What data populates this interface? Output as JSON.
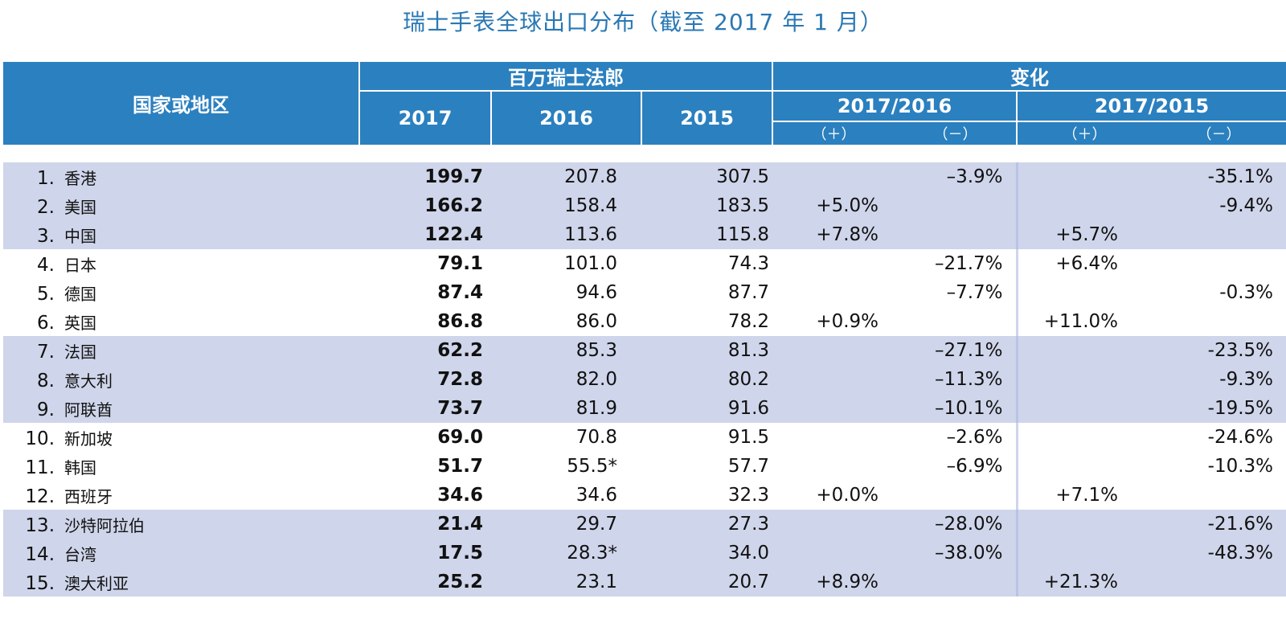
{
  "title": "瑞士手表全球出口分布（截至 2017 年 1 月）",
  "header": {
    "country": "国家或地区",
    "unit_group": "百万瑞士法郎",
    "change_group": "变化",
    "years": [
      "2017",
      "2016",
      "2015"
    ],
    "change_periods": [
      "2017/2016",
      "2017/2015"
    ],
    "plus": "（＋）",
    "minus": "（－）"
  },
  "rows": [
    {
      "rank": "1.",
      "name": "香港",
      "v2017": "199.7",
      "v2016": "207.8",
      "v2015": "307.5",
      "p1": "",
      "n1": "–3.9%",
      "p2": "",
      "n2": "-35.1%",
      "shade": true
    },
    {
      "rank": "2.",
      "name": "美国",
      "v2017": "166.2",
      "v2016": "158.4",
      "v2015": "183.5",
      "p1": "+5.0%",
      "n1": "",
      "p2": "",
      "n2": "-9.4%",
      "shade": true
    },
    {
      "rank": "3.",
      "name": "中国",
      "v2017": "122.4",
      "v2016": "113.6",
      "v2015": "115.8",
      "p1": "+7.8%",
      "n1": "",
      "p2": "+5.7%",
      "n2": "",
      "shade": true
    },
    {
      "rank": "4.",
      "name": "日本",
      "v2017": "79.1",
      "v2016": "101.0",
      "v2015": "74.3",
      "p1": "",
      "n1": "–21.7%",
      "p2": "+6.4%",
      "n2": "",
      "shade": false
    },
    {
      "rank": "5.",
      "name": "德国",
      "v2017": "87.4",
      "v2016": "94.6",
      "v2015": "87.7",
      "p1": "",
      "n1": "–7.7%",
      "p2": "",
      "n2": "-0.3%",
      "shade": false
    },
    {
      "rank": "6.",
      "name": "英国",
      "v2017": "86.8",
      "v2016": "86.0",
      "v2015": "78.2",
      "p1": "+0.9%",
      "n1": "",
      "p2": "+11.0%",
      "n2": "",
      "shade": false
    },
    {
      "rank": "7.",
      "name": "法国",
      "v2017": "62.2",
      "v2016": "85.3",
      "v2015": "81.3",
      "p1": "",
      "n1": "–27.1%",
      "p2": "",
      "n2": "-23.5%",
      "shade": true
    },
    {
      "rank": "8.",
      "name": "意大利",
      "v2017": "72.8",
      "v2016": "82.0",
      "v2015": "80.2",
      "p1": "",
      "n1": "–11.3%",
      "p2": "",
      "n2": "-9.3%",
      "shade": true
    },
    {
      "rank": "9.",
      "name": "阿联酋",
      "v2017": "73.7",
      "v2016": "81.9",
      "v2015": "91.6",
      "p1": "",
      "n1": "–10.1%",
      "p2": "",
      "n2": "-19.5%",
      "shade": true
    },
    {
      "rank": "10.",
      "name": "新加坡",
      "v2017": "69.0",
      "v2016": "70.8",
      "v2015": "91.5",
      "p1": "",
      "n1": "–2.6%",
      "p2": "",
      "n2": "-24.6%",
      "shade": false
    },
    {
      "rank": "11.",
      "name": "韩国",
      "v2017": "51.7",
      "v2016": "55.5*",
      "v2015": "57.7",
      "p1": "",
      "n1": "–6.9%",
      "p2": "",
      "n2": "-10.3%",
      "shade": false
    },
    {
      "rank": "12.",
      "name": "西班牙",
      "v2017": "34.6",
      "v2016": "34.6",
      "v2015": "32.3",
      "p1": "+0.0%",
      "n1": "",
      "p2": "+7.1%",
      "n2": "",
      "shade": false
    },
    {
      "rank": "13.",
      "name": "沙特阿拉伯",
      "v2017": "21.4",
      "v2016": "29.7",
      "v2015": "27.3",
      "p1": "",
      "n1": "–28.0%",
      "p2": "",
      "n2": "-21.6%",
      "shade": true
    },
    {
      "rank": "14.",
      "name": "台湾",
      "v2017": "17.5",
      "v2016": "28.3*",
      "v2015": "34.0",
      "p1": "",
      "n1": "–38.0%",
      "p2": "",
      "n2": "-48.3%",
      "shade": true
    },
    {
      "rank": "15.",
      "name": "澳大利亚",
      "v2017": "25.2",
      "v2016": "23.1",
      "v2015": "20.7",
      "p1": "+8.9%",
      "n1": "",
      "p2": "+21.3%",
      "n2": "",
      "shade": true
    }
  ]
}
